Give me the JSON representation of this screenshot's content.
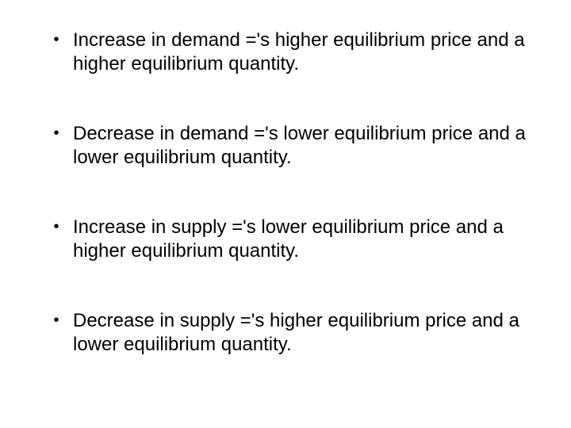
{
  "slide": {
    "background_color": "#ffffff",
    "text_color": "#000000",
    "font_family": "Arial",
    "font_size_pt": 18,
    "bullet_marker": "•",
    "bullets": [
      "Increase in demand ='s higher equilibrium price and a higher equilibrium quantity.",
      "Decrease in demand ='s lower equilibrium price and a lower equilibrium quantity.",
      "Increase in supply ='s lower equilibrium price and a higher equilibrium quantity.",
      "Decrease in supply ='s higher equilibrium price and a lower equilibrium quantity."
    ]
  }
}
